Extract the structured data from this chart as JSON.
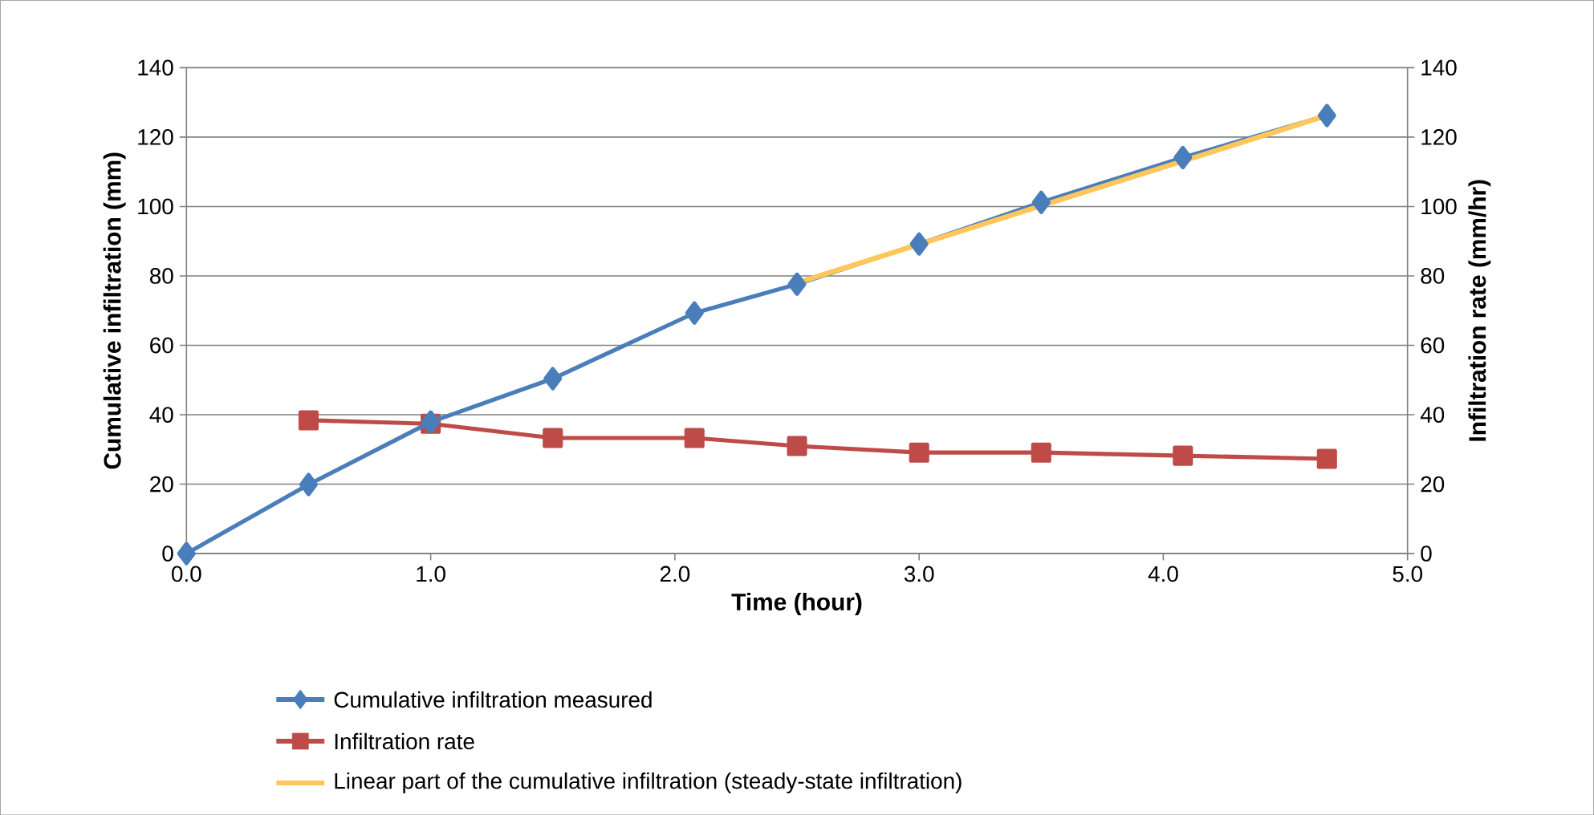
{
  "chart_data": {
    "type": "line",
    "xlabel": "Time (hour)",
    "ylabel": "Cumulative infiltration (mm)",
    "y2label": "Infiltration rate (mm/hr)",
    "xlim": [
      0,
      5
    ],
    "xticks": [
      {
        "value": 0,
        "label": "0.0"
      },
      {
        "value": 1,
        "label": "1.0"
      },
      {
        "value": 2,
        "label": "2.0"
      },
      {
        "value": 3,
        "label": "3.0"
      },
      {
        "value": 4,
        "label": "4.0"
      },
      {
        "value": 5,
        "label": "5.0"
      }
    ],
    "ylim": [
      0,
      140
    ],
    "yticks": [
      0,
      20,
      40,
      60,
      80,
      100,
      120,
      140
    ],
    "y2lim": [
      0,
      140
    ],
    "y2ticks": [
      0,
      20,
      40,
      60,
      80,
      100,
      120,
      140
    ],
    "grid": "y",
    "legend": "bottom",
    "series": [
      {
        "name": "Cumulative infiltration measured",
        "color": "#4a7ebb",
        "marker": "diamond",
        "x": [
          0,
          0.5,
          1.0,
          1.5,
          2.08,
          2.5,
          3.0,
          3.5,
          4.08,
          4.67
        ],
        "values": [
          0,
          19.9,
          37.9,
          50.4,
          69.3,
          77.6,
          89.2,
          101.2,
          114.1,
          126.2
        ]
      },
      {
        "name": "Infiltration rate",
        "color": "#be4b48",
        "marker": "square",
        "axis": "y2",
        "x": [
          0.5,
          1.0,
          1.5,
          2.08,
          2.5,
          3.0,
          3.5,
          4.08,
          4.67
        ],
        "values": [
          38.4,
          37.4,
          33.3,
          33.3,
          31,
          29.1,
          29.1,
          28.2,
          27.3
        ]
      },
      {
        "name": "Linear part of the cumulative infiltration (steady-state infiltration)",
        "color": "#ffc65a",
        "marker": "none",
        "x": [
          2.5,
          4.67
        ],
        "values": [
          78,
          126.2
        ]
      }
    ]
  }
}
